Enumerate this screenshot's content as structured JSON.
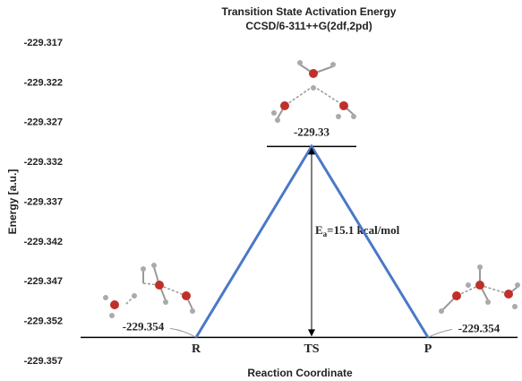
{
  "chart_data": {
    "type": "line",
    "title": "Transition State Activation Energy",
    "subtitle": "CCSD/6-311++G(2df,2pd)",
    "xlabel": "Reaction Coordinate",
    "ylabel": "Energy [a.u.]",
    "categories": [
      "R",
      "TS",
      "P"
    ],
    "values": [
      -229.354,
      -229.33,
      -229.354
    ],
    "color": "#4a78c8",
    "ylim": [
      -229.357,
      -229.317
    ],
    "yticks": [
      -229.357,
      -229.352,
      -229.347,
      -229.342,
      -229.337,
      -229.332,
      -229.327,
      -229.322,
      -229.317
    ],
    "annotation": {
      "symbol": "E",
      "subscript": "a",
      "text": "=15.1 kcal/mol"
    }
  }
}
